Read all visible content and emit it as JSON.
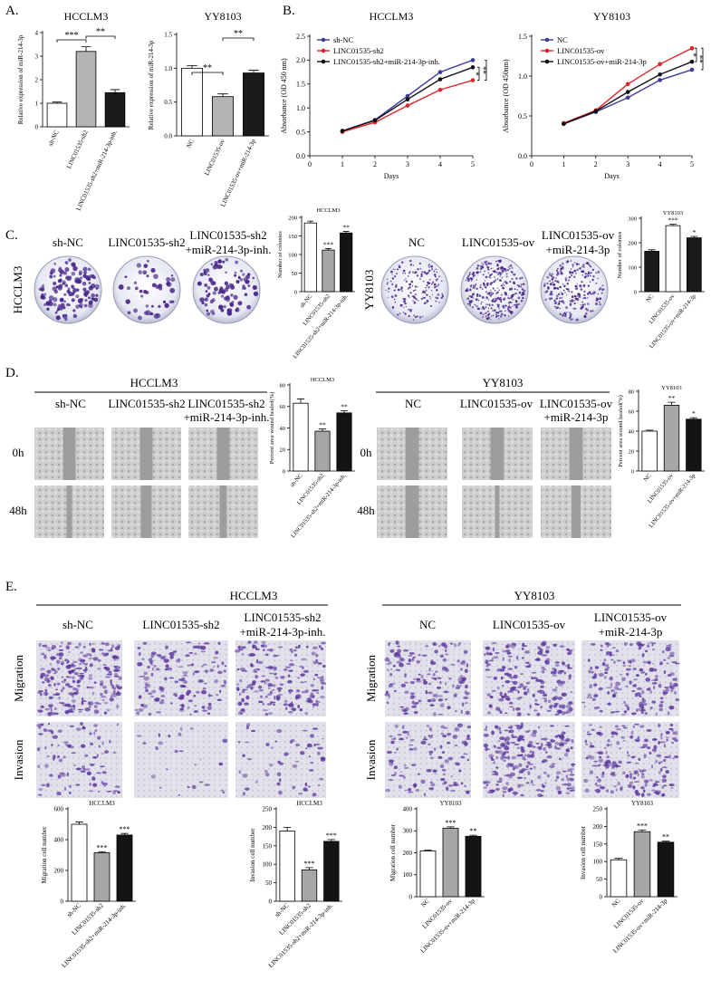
{
  "figure": {
    "panel_labels": [
      "A.",
      "B.",
      "C.",
      "D.",
      "E."
    ],
    "C": {
      "cell_lines": [
        "HCCLM3",
        "YY8103"
      ],
      "groups": [
        [
          "sh-NC"
        ],
        [
          "LINC01535-sh2"
        ],
        [
          "LINC01535-sh2",
          "+miR-214-3p-inh."
        ],
        [
          "NC"
        ],
        [
          "LINC01535-ov"
        ],
        [
          "LINC01535-ov",
          "+miR-214-3p"
        ]
      ]
    },
    "D": {
      "cell_lines": [
        "HCCLM3",
        "YY8103"
      ],
      "groups": [
        [
          "sh-NC"
        ],
        [
          "LINC01535-sh2"
        ],
        [
          "LINC01535-sh2",
          "+miR-214-3p-inh."
        ],
        [
          "NC"
        ],
        [
          "LINC01535-ov"
        ],
        [
          "LINC01535-ov",
          "+miR-214-3p"
        ]
      ],
      "times": [
        "0h",
        "48h"
      ]
    },
    "E": {
      "cell_lines": [
        "HCCLM3",
        "YY8103"
      ],
      "groups": [
        [
          "sh-NC"
        ],
        [
          "LINC01535-sh2"
        ],
        [
          "LINC01535-sh2",
          "+miR-214-3p-inh."
        ],
        [
          "NC"
        ],
        [
          "LINC01535-ov"
        ],
        [
          "LINC01535-ov",
          "+miR-214-3p"
        ]
      ],
      "assays": [
        "Migration",
        "Invasion"
      ]
    }
  },
  "chart_data": [
    {
      "type": "bar",
      "title": "HCCLM3",
      "ylabel": "Relative expression of miR-214-3p",
      "categories": [
        "sh-NC",
        "LINC01535-sh2",
        "LINC01535-sh2+miR-214-3p-inh."
      ],
      "values": [
        1.0,
        3.2,
        1.45
      ],
      "errors": [
        0.05,
        0.2,
        0.13
      ],
      "colors": [
        "#ffffff",
        "#b4b4b4",
        "#1a1a1a"
      ],
      "ylim": [
        0,
        4
      ],
      "yticks": [
        0,
        1,
        2,
        3,
        4
      ],
      "annotations": [
        "***",
        "**"
      ]
    },
    {
      "type": "bar",
      "title": "YY8103",
      "ylabel": "Relative expression of miR-214-3p",
      "categories": [
        "NC",
        "LINC01535-ov",
        "LINC01535-ov+miR-214-3p"
      ],
      "values": [
        1.0,
        0.58,
        0.93
      ],
      "errors": [
        0.04,
        0.04,
        0.04
      ],
      "colors": [
        "#ffffff",
        "#b4b4b4",
        "#1a1a1a"
      ],
      "ylim": [
        0,
        1.5
      ],
      "yticks": [
        {
          "value": 0,
          "label": "0.0"
        },
        {
          "value": 0.5,
          "label": "0.5"
        },
        {
          "value": 1,
          "label": "1.0"
        },
        {
          "value": 1.5,
          "label": "1.5"
        }
      ],
      "annotations": [
        "**",
        "**"
      ]
    },
    {
      "type": "line",
      "title": "HCCLM3",
      "xlabel": "Days",
      "ylabel": "Absorbance (OD 450 nm)",
      "x": [
        1,
        2,
        3,
        4,
        5
      ],
      "xlim": [
        0,
        5
      ],
      "xticks": [
        0,
        1,
        2,
        3,
        4,
        5
      ],
      "ylim": [
        0,
        2.5
      ],
      "yticks": [
        {
          "value": 0,
          "label": "0.0"
        },
        {
          "value": 0.5,
          "label": "0.5"
        },
        {
          "value": 1,
          "label": "1.0"
        },
        {
          "value": 1.5,
          "label": "1.5"
        },
        {
          "value": 2,
          "label": "2.0"
        },
        {
          "value": 2.5,
          "label": "2.5"
        }
      ],
      "series": [
        {
          "name": "sh-NC",
          "color": "#3b3b9a",
          "values": [
            0.52,
            0.75,
            1.25,
            1.75,
            2.0
          ]
        },
        {
          "name": "LINC01535-sh2",
          "color": "#e0262a",
          "values": [
            0.5,
            0.7,
            1.05,
            1.38,
            1.58
          ]
        },
        {
          "name": "LINC01535-sh2+miR-214-3p-inh.",
          "color": "#111111",
          "values": [
            0.52,
            0.74,
            1.18,
            1.6,
            1.85
          ]
        }
      ],
      "annotations": [
        "*",
        "**"
      ]
    },
    {
      "type": "line",
      "title": "YY8103",
      "xlabel": "Days",
      "ylabel": "Absorbance (OD 450nm)",
      "x": [
        1,
        2,
        3,
        4,
        5
      ],
      "xlim": [
        0,
        5
      ],
      "xticks": [
        0,
        1,
        2,
        3,
        4,
        5
      ],
      "ylim": [
        0,
        1.5
      ],
      "yticks": [
        {
          "value": 0,
          "label": "0.0"
        },
        {
          "value": 0.5,
          "label": "0.5"
        },
        {
          "value": 1,
          "label": "1.0"
        },
        {
          "value": 1.5,
          "label": "1.5"
        }
      ],
      "series": [
        {
          "name": "NC",
          "color": "#3b3b9a",
          "values": [
            0.4,
            0.55,
            0.73,
            0.95,
            1.08
          ]
        },
        {
          "name": "LINC01535-ov",
          "color": "#e0262a",
          "values": [
            0.41,
            0.57,
            0.9,
            1.15,
            1.35
          ]
        },
        {
          "name": "LINC01535-ov+miR-214-3p",
          "color": "#111111",
          "values": [
            0.4,
            0.56,
            0.8,
            1.02,
            1.18
          ]
        }
      ],
      "annotations": [
        "*",
        "**"
      ]
    },
    {
      "type": "bar",
      "title": "HCCLM3",
      "ylabel": "Number of colonies",
      "categories": [
        "sh-NC",
        "LINC01535-sh2",
        "LINC01535-sh2+miR-214-3p-inh."
      ],
      "values": [
        185,
        112,
        158
      ],
      "errors": [
        5,
        4,
        4
      ],
      "colors": [
        "#ffffff",
        "#a6a6a6",
        "#141414"
      ],
      "ylim": [
        0,
        200
      ],
      "yticks": [
        0,
        50,
        100,
        150,
        200
      ],
      "annotations": [
        "***",
        "**"
      ]
    },
    {
      "type": "bar",
      "title": "YY8103",
      "ylabel": "Number of colonies",
      "categories": [
        "NC",
        "LINC01535-ov",
        "LINC01535-ov+miR-214-3p"
      ],
      "values": [
        165,
        270,
        220
      ],
      "errors": [
        6,
        6,
        6
      ],
      "colors": [
        "#1a1a1a",
        "#ffffff",
        "#1a1a1a"
      ],
      "ylim": [
        0,
        300
      ],
      "yticks": [
        0,
        100,
        200,
        300
      ],
      "annotations": [
        "***",
        "*"
      ]
    },
    {
      "type": "bar",
      "title": "HCCLM3",
      "ylabel": "Percent area wound healed(%)",
      "categories": [
        "sh-NC",
        "LINC01535-sh2",
        "LINC01535-sh2+miR-214-3p-inh."
      ],
      "values": [
        63,
        37,
        54
      ],
      "errors": [
        4,
        2,
        2
      ],
      "colors": [
        "#ffffff",
        "#a6a6a6",
        "#141414"
      ],
      "ylim": [
        0,
        80
      ],
      "yticks": [
        0,
        20,
        40,
        60,
        80
      ],
      "annotations": [
        "**",
        "**"
      ]
    },
    {
      "type": "bar",
      "title": "YY8103",
      "ylabel": "Percent area wound healed(%)",
      "categories": [
        "NC",
        "LINC01535-ov",
        "LINC01535-ov+miR-214-3p"
      ],
      "values": [
        40,
        66,
        52
      ],
      "errors": [
        1,
        3,
        1.5
      ],
      "colors": [
        "#ffffff",
        "#a6a6a6",
        "#141414"
      ],
      "ylim": [
        0,
        80
      ],
      "yticks": [
        0,
        20,
        40,
        60,
        80
      ],
      "annotations": [
        "**",
        "*"
      ]
    },
    {
      "type": "bar",
      "title": "HCCLM3",
      "ylabel": "Migration cell number",
      "categories": [
        "sh-NC",
        "LINC01535-sh2",
        "LINC01535-sh2+miR-214-3p-inh."
      ],
      "values": [
        500,
        315,
        430
      ],
      "errors": [
        15,
        7,
        10
      ],
      "colors": [
        "#ffffff",
        "#a6a6a6",
        "#141414"
      ],
      "ylim": [
        0,
        600
      ],
      "yticks": [
        0,
        200,
        400,
        600
      ],
      "annotations": [
        "***",
        "***"
      ]
    },
    {
      "type": "bar",
      "title": "HCCLM3",
      "ylabel": "Invasion cell number",
      "categories": [
        "sh-NC",
        "LINC01535-sh2",
        "LINC01535-sh2+miR-214-3p-inh."
      ],
      "values": [
        190,
        85,
        162
      ],
      "errors": [
        10,
        6,
        5
      ],
      "colors": [
        "#ffffff",
        "#a6a6a6",
        "#141414"
      ],
      "ylim": [
        0,
        250
      ],
      "yticks": [
        0,
        50,
        100,
        150,
        200,
        250
      ],
      "annotations": [
        "***",
        "***"
      ]
    },
    {
      "type": "bar",
      "title": "YY8103",
      "ylabel": "Migration cell number",
      "categories": [
        "NC",
        "LINC01535-ov",
        "LINC01535-ov+miR-214-3p"
      ],
      "values": [
        208,
        312,
        275
      ],
      "errors": [
        4,
        6,
        5
      ],
      "colors": [
        "#ffffff",
        "#a6a6a6",
        "#141414"
      ],
      "ylim": [
        0,
        400
      ],
      "yticks": [
        0,
        100,
        200,
        300,
        400
      ],
      "annotations": [
        "***",
        "**"
      ]
    },
    {
      "type": "bar",
      "title": "YY8103",
      "ylabel": "Invasion cell number",
      "categories": [
        "NC",
        "LINC01535-ov",
        "LINC01535-ov+miR-214-3p"
      ],
      "values": [
        105,
        185,
        155
      ],
      "errors": [
        4,
        5,
        3
      ],
      "colors": [
        "#ffffff",
        "#a6a6a6",
        "#141414"
      ],
      "ylim": [
        0,
        250
      ],
      "yticks": [
        0,
        50,
        100,
        150,
        200,
        250
      ],
      "annotations": [
        "***",
        "**"
      ]
    }
  ]
}
